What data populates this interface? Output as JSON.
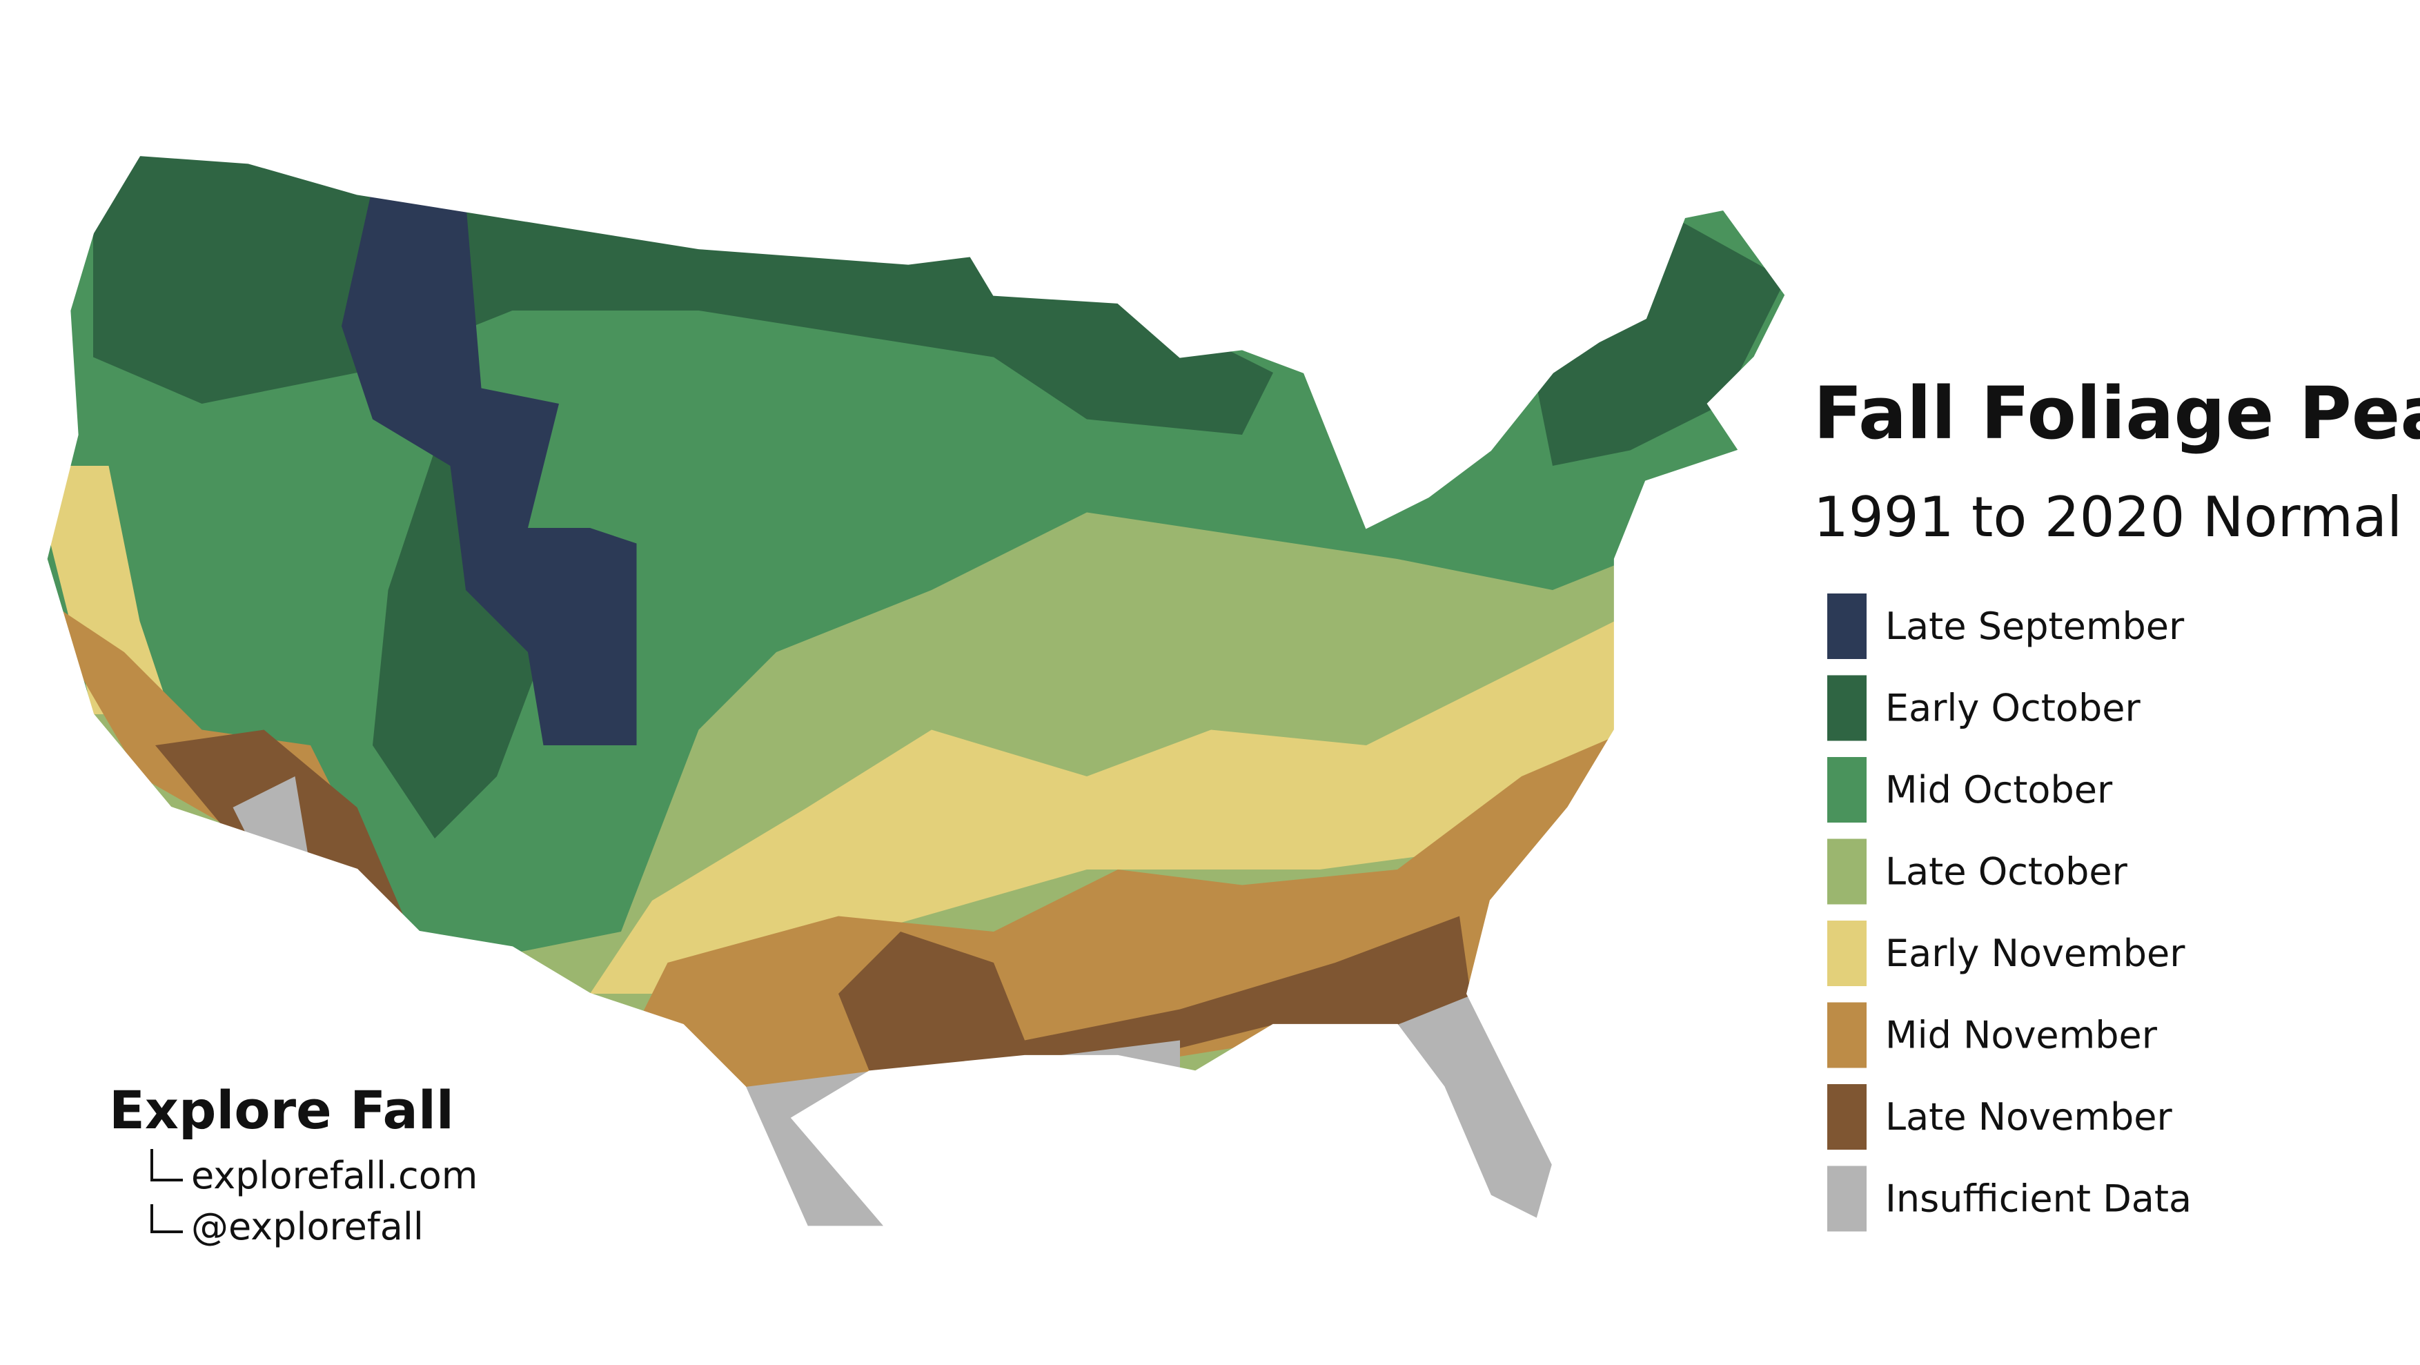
{
  "title": "Fall Foliage Peak",
  "subtitle": "1991 to 2020 Normal",
  "legend": [
    {
      "label": "Late September",
      "color": "#2c3a56"
    },
    {
      "label": "Early October",
      "color": "#2f6543"
    },
    {
      "label": "Mid October",
      "color": "#4a935c"
    },
    {
      "label": "Late October",
      "color": "#9bb66f"
    },
    {
      "label": "Early November",
      "color": "#e3d07a"
    },
    {
      "label": "Mid November",
      "color": "#bd8c47"
    },
    {
      "label": "Late November",
      "color": "#7f5632"
    },
    {
      "label": "Insufficient Data",
      "color": "#b4b4b4"
    }
  ],
  "branding": {
    "name": "Explore Fall",
    "links": [
      "explorefall.com",
      "@explorefall"
    ]
  }
}
